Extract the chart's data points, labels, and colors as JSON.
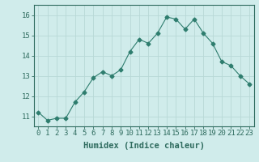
{
  "x": [
    0,
    1,
    2,
    3,
    4,
    5,
    6,
    7,
    8,
    9,
    10,
    11,
    12,
    13,
    14,
    15,
    16,
    17,
    18,
    19,
    20,
    21,
    22,
    23
  ],
  "y": [
    11.2,
    10.8,
    10.9,
    10.9,
    11.7,
    12.2,
    12.9,
    13.2,
    13.0,
    13.3,
    14.2,
    14.8,
    14.6,
    15.1,
    15.9,
    15.8,
    15.3,
    15.8,
    15.1,
    14.6,
    13.7,
    13.5,
    13.0,
    12.6
  ],
  "line_color": "#2e7d6e",
  "marker": "D",
  "marker_size": 2.5,
  "bg_color": "#d0eceb",
  "grid_color": "#b8d8d6",
  "xlabel": "Humidex (Indice chaleur)",
  "xlim": [
    -0.5,
    23.5
  ],
  "ylim": [
    10.5,
    16.5
  ],
  "yticks": [
    11,
    12,
    13,
    14,
    15,
    16
  ],
  "xticks": [
    0,
    1,
    2,
    3,
    4,
    5,
    6,
    7,
    8,
    9,
    10,
    11,
    12,
    13,
    14,
    15,
    16,
    17,
    18,
    19,
    20,
    21,
    22,
    23
  ],
  "tick_label_color": "#2e6b5e",
  "axis_color": "#2e6b5e",
  "label_fontsize": 7.5,
  "tick_fontsize": 6.5
}
